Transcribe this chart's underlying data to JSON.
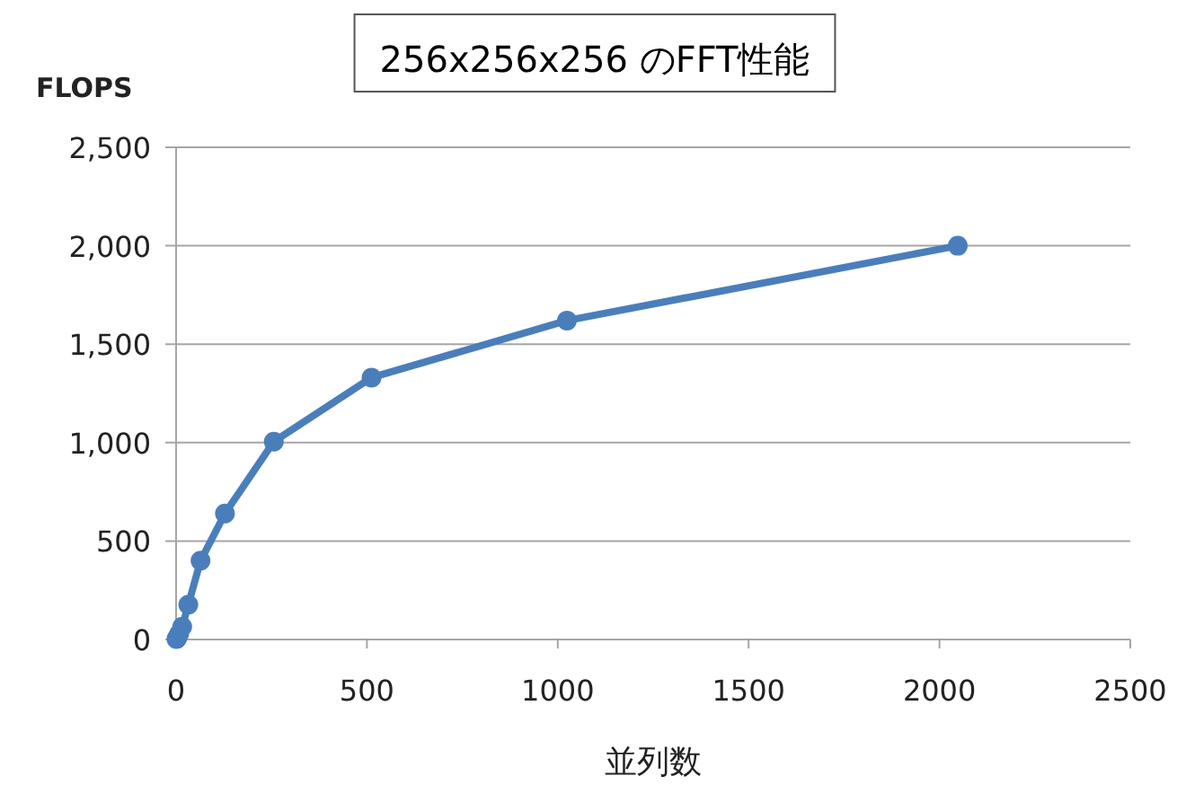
{
  "chart_data": {
    "type": "line",
    "title": "256x256x256 のFFT性能",
    "xlabel": "並列数",
    "ylabel": "FLOPS",
    "x": [
      1,
      2,
      4,
      8,
      16,
      32,
      64,
      128,
      256,
      512,
      1024,
      2048
    ],
    "series": [
      {
        "color": "#4a7ebb",
        "values": [
          2,
          5,
          12,
          30,
          65,
          177,
          400,
          640,
          1005,
          1330,
          1620,
          2000
        ]
      }
    ],
    "xlim": [
      0,
      2500
    ],
    "xticks": [
      0,
      500,
      1000,
      1500,
      2000,
      2500
    ],
    "ylim": [
      0,
      2500
    ],
    "yticks": [
      0,
      500,
      {
        "value": 1000,
        "label": "1,000"
      },
      {
        "value": 1500,
        "label": "1,500"
      },
      {
        "value": 2000,
        "label": "2,000"
      },
      {
        "value": 2500,
        "label": "2,500"
      }
    ],
    "grid": "y",
    "marker": "circle",
    "line_style": "solid"
  }
}
